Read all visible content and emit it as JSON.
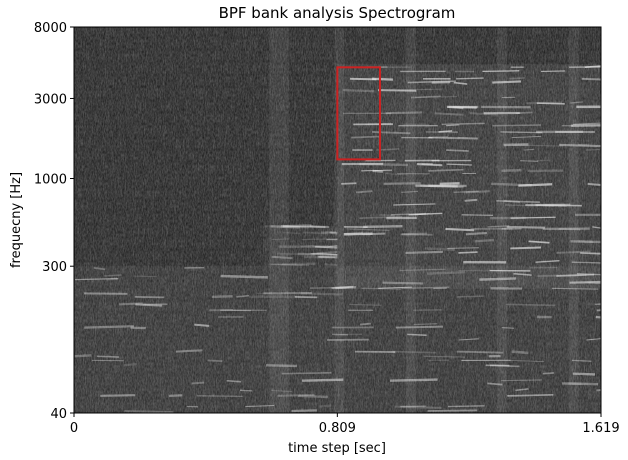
{
  "chart_data": {
    "type": "heatmap",
    "title": "BPF bank analysis Spectrogram",
    "xlabel": "time step [sec]",
    "ylabel": "frequecny [Hz]",
    "x_ticks": [
      {
        "value": 0,
        "label": "0"
      },
      {
        "value": 0.809,
        "label": "0.809"
      },
      {
        "value": 1.619,
        "label": "1.619"
      }
    ],
    "y_ticks": [
      {
        "value": 40,
        "label": "40"
      },
      {
        "value": 300,
        "label": "300"
      },
      {
        "value": 1000,
        "label": "1000"
      },
      {
        "value": 3000,
        "label": "3000"
      },
      {
        "value": 8000,
        "label": "8000"
      }
    ],
    "xlim": [
      0,
      1.619
    ],
    "ylim": [
      40,
      8000
    ],
    "y_scale": "log",
    "colormap": "gray",
    "highlight_box": {
      "x0": 0.809,
      "x1": 0.94,
      "f0": 1300,
      "f1": 4600,
      "color": "#cc2222"
    },
    "harmonic_regions": [
      {
        "t0": 0.809,
        "t1": 1.619,
        "f0": 220,
        "f1": 4800,
        "intensity": 0.85
      },
      {
        "t0": 0.58,
        "t1": 0.809,
        "f0": 300,
        "f1": 520,
        "intensity": 0.55
      },
      {
        "t0": 0.0,
        "t1": 1.619,
        "f0": 40,
        "f1": 300,
        "intensity": 0.7
      }
    ]
  }
}
